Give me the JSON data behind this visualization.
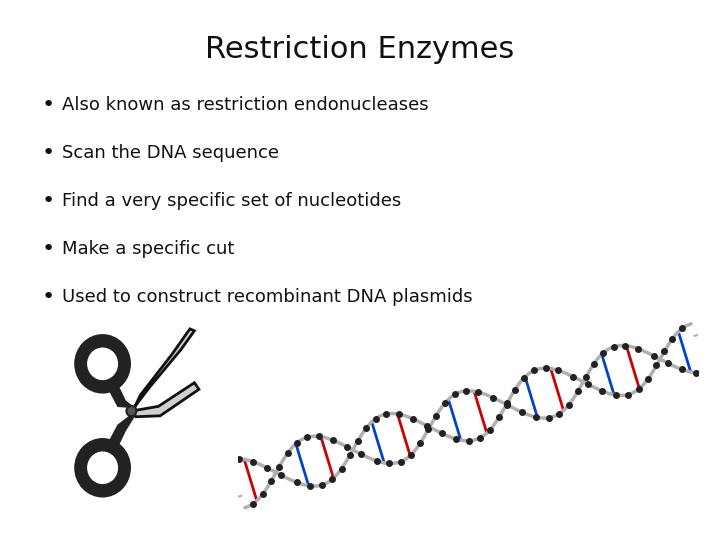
{
  "title": "Restriction Enzymes",
  "title_fontsize": 22,
  "title_font": "DejaVu Sans",
  "bullet_points": [
    "Also known as restriction endonucleases",
    "Scan the DNA sequence",
    "Find a very specific set of nucleotides",
    "Make a specific cut",
    "Used to construct recombinant DNA plasmids"
  ],
  "bullet_fontsize": 13,
  "bullet_font": "DejaVu Sans",
  "background_color": "#ffffff",
  "text_color": "#111111",
  "fig_width": 7.2,
  "fig_height": 5.4,
  "dpi": 100
}
